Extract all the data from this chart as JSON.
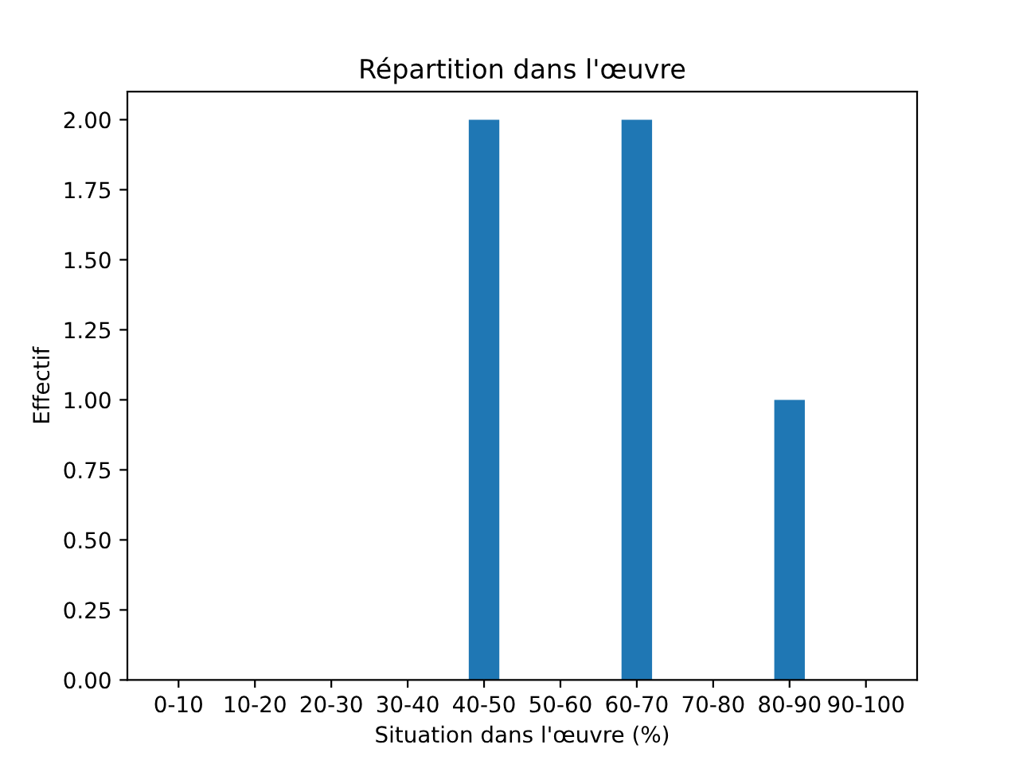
{
  "chart_data": {
    "type": "bar",
    "title": "Répartition dans l'œuvre",
    "xlabel": "Situation dans l'œuvre (%)",
    "ylabel": "Effectif",
    "categories": [
      "0-10",
      "10-20",
      "20-30",
      "30-40",
      "40-50",
      "50-60",
      "60-70",
      "70-80",
      "80-90",
      "90-100"
    ],
    "values": [
      0,
      0,
      0,
      0,
      2,
      0,
      2,
      0,
      1,
      0
    ],
    "color": "#1f77b4",
    "ylim": [
      0,
      2.1
    ],
    "yticks": [
      {
        "value": 0,
        "label": "0.00"
      },
      {
        "value": 0.25,
        "label": "0.25"
      },
      {
        "value": 0.5,
        "label": "0.50"
      },
      {
        "value": 0.75,
        "label": "0.75"
      },
      {
        "value": 1,
        "label": "1.00"
      },
      {
        "value": 1.25,
        "label": "1.25"
      },
      {
        "value": 1.5,
        "label": "1.50"
      },
      {
        "value": 1.75,
        "label": "1.75"
      },
      {
        "value": 2,
        "label": "2.00"
      }
    ],
    "grid": false
  }
}
